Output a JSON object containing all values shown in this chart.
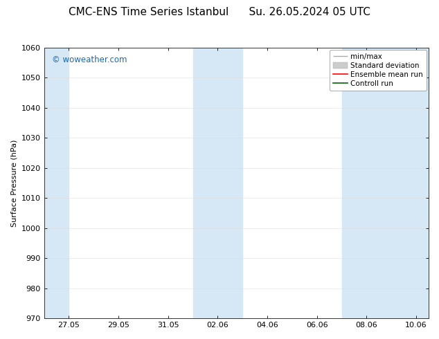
{
  "title_left": "CMC-ENS Time Series Istanbul",
  "title_right": "Su. 26.05.2024 05 UTC",
  "ylabel": "Surface Pressure (hPa)",
  "ylim": [
    970,
    1060
  ],
  "yticks": [
    970,
    980,
    990,
    1000,
    1010,
    1020,
    1030,
    1040,
    1050,
    1060
  ],
  "xtick_labels": [
    "27.05",
    "29.05",
    "31.05",
    "02.06",
    "04.06",
    "06.06",
    "08.06",
    "10.06"
  ],
  "watermark": "© woweather.com",
  "watermark_color": "#1a6ab5",
  "bg_color": "#ffffff",
  "shaded_color": "#d6e8f5",
  "legend_entries": [
    {
      "label": "min/max",
      "color": "#bbbbbb",
      "style": "minmax"
    },
    {
      "label": "Standard deviation",
      "color": "#cccccc",
      "style": "stddev"
    },
    {
      "label": "Ensemble mean run",
      "color": "red",
      "style": "line"
    },
    {
      "label": "Controll run",
      "color": "green",
      "style": "line"
    }
  ],
  "title_fontsize": 11,
  "axis_fontsize": 8,
  "tick_fontsize": 8,
  "legend_fontsize": 7.5
}
